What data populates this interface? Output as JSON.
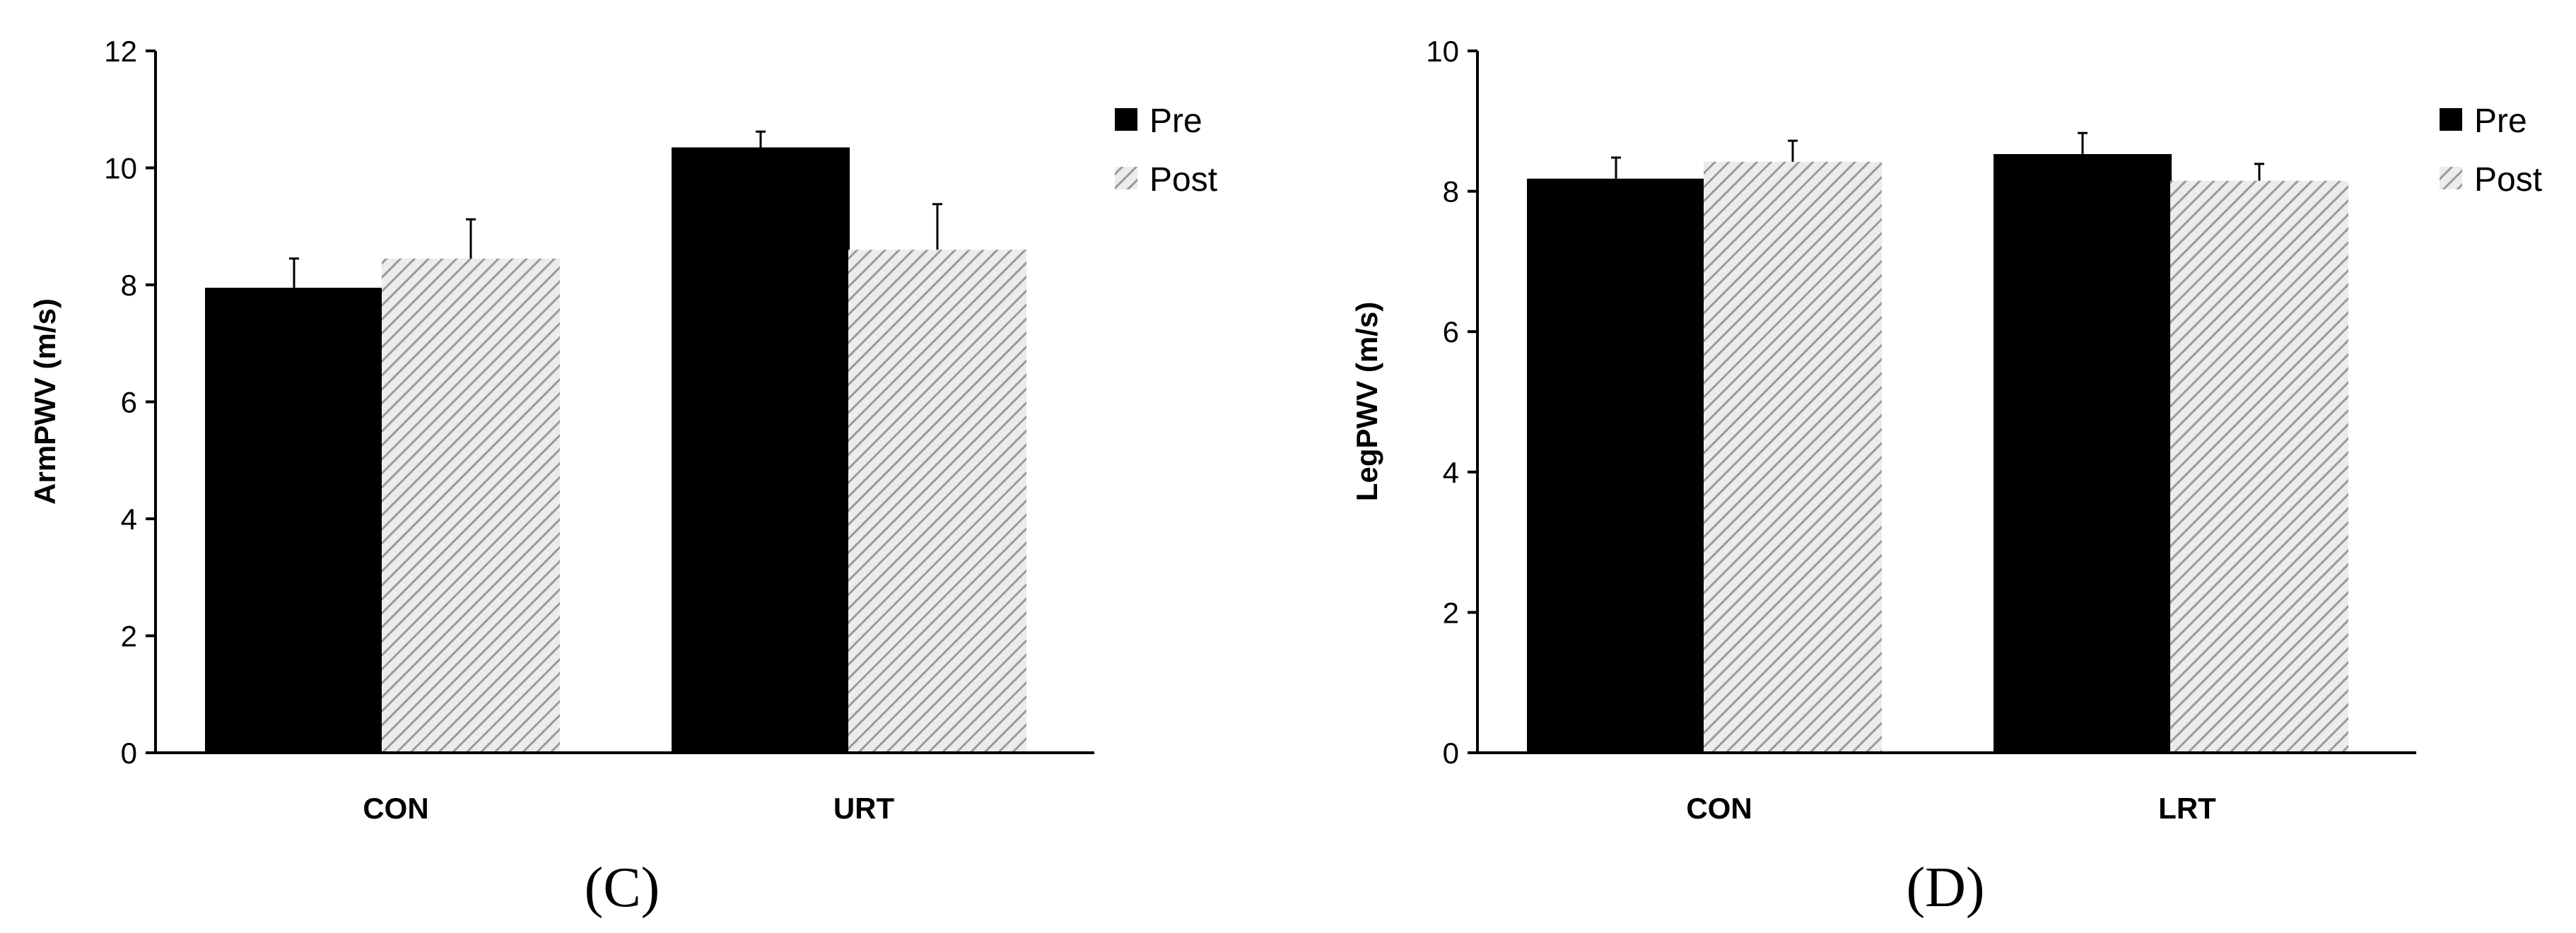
{
  "colors": {
    "pre": "#000000",
    "post_stripe": "#9a9a9a",
    "post_background": "#ececec"
  },
  "chart_data": [
    {
      "type": "bar",
      "panel_label": "(C)",
      "ylabel": "ArmPWV (m/s)",
      "xlabel": "",
      "ylim": [
        0,
        12
      ],
      "yticks": [
        0,
        2,
        4,
        6,
        8,
        10,
        12
      ],
      "categories": [
        "CON",
        "URT"
      ],
      "legend_position": "top-right",
      "series": [
        {
          "name": "Pre",
          "values": [
            7.95,
            10.35
          ],
          "errors": [
            0.5,
            0.27
          ]
        },
        {
          "name": "Post",
          "values": [
            8.45,
            8.6
          ],
          "errors": [
            0.67,
            0.78
          ]
        }
      ]
    },
    {
      "type": "bar",
      "panel_label": "(D)",
      "ylabel": "LegPWV (m/s)",
      "xlabel": "",
      "ylim": [
        0,
        10
      ],
      "yticks": [
        0,
        2,
        4,
        6,
        8,
        10
      ],
      "categories": [
        "CON",
        "LRT"
      ],
      "legend_position": "top-right",
      "series": [
        {
          "name": "Pre",
          "values": [
            8.18,
            8.53
          ],
          "errors": [
            0.3,
            0.3
          ]
        },
        {
          "name": "Post",
          "values": [
            8.42,
            8.15
          ],
          "errors": [
            0.3,
            0.24
          ]
        }
      ]
    }
  ]
}
